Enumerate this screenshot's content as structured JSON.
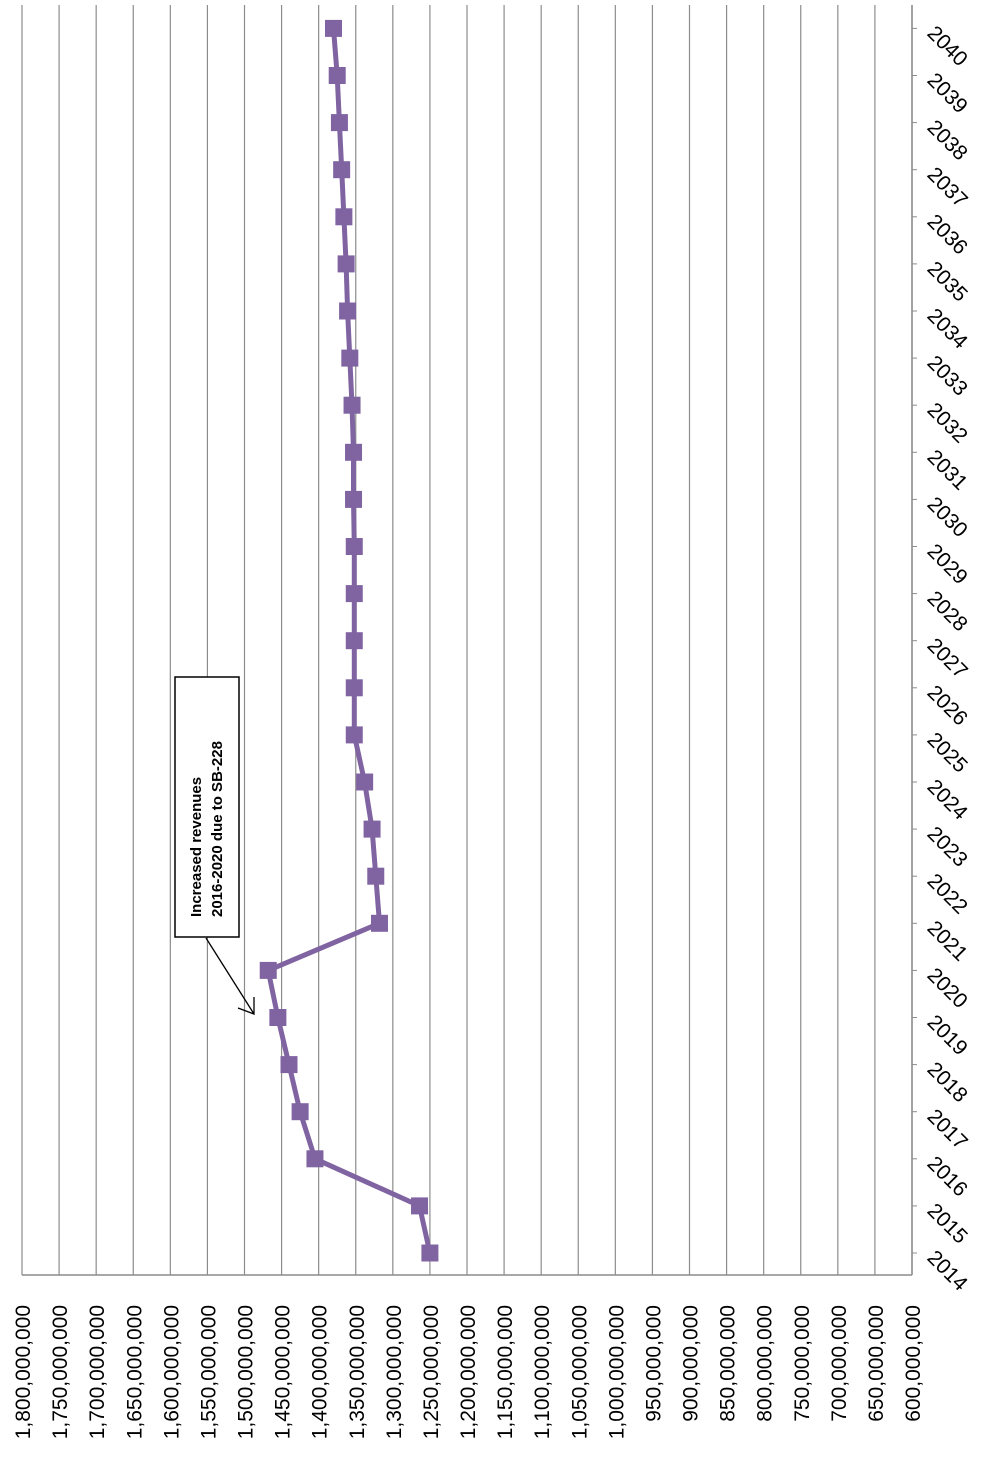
{
  "chart_data": {
    "type": "line",
    "orientation": "rotated-90",
    "title": "",
    "xlabel": "",
    "ylabel": "",
    "x": [
      "2014",
      "2015",
      "2016",
      "2017",
      "2018",
      "2019",
      "2020",
      "2021",
      "2022",
      "2023",
      "2024",
      "2025",
      "2026",
      "2027",
      "2028",
      "2029",
      "2030",
      "2031",
      "2032",
      "2033",
      "2034",
      "2035",
      "2036",
      "2037",
      "2038",
      "2039",
      "2040"
    ],
    "series": [
      {
        "values": [
          1250000000,
          1264000000,
          1405000000,
          1425000000,
          1440000000,
          1455000000,
          1468000000,
          1318000000,
          1323000000,
          1328000000,
          1338000000,
          1352000000,
          1352000000,
          1352000000,
          1352000000,
          1352000000,
          1353000000,
          1353000000,
          1355000000,
          1358000000,
          1361000000,
          1363000000,
          1366000000,
          1369000000,
          1372000000,
          1375000000,
          1380000000
        ],
        "color": "#8064A2",
        "marker": "square"
      }
    ],
    "ylim": [
      600000000,
      1800000000
    ],
    "y_ticks": [
      "600,000,000",
      "650,000,000",
      "700,000,000",
      "750,000,000",
      "800,000,000",
      "850,000,000",
      "900,000,000",
      "950,000,000",
      "1,000,000,000",
      "1,050,000,000",
      "1,100,000,000",
      "1,150,000,000",
      "1,200,000,000",
      "1,250,000,000",
      "1,300,000,000",
      "1,350,000,000",
      "1,400,000,000",
      "1,450,000,000",
      "1,500,000,000",
      "1,550,000,000",
      "1,600,000,000",
      "1,650,000,000",
      "1,700,000,000",
      "1,750,000,000",
      "1,800,000,000"
    ],
    "grid": true,
    "annotation": {
      "lines": [
        "Increased revenues",
        "2016-2020 due to SB-228"
      ],
      "points_to": "2019"
    }
  }
}
